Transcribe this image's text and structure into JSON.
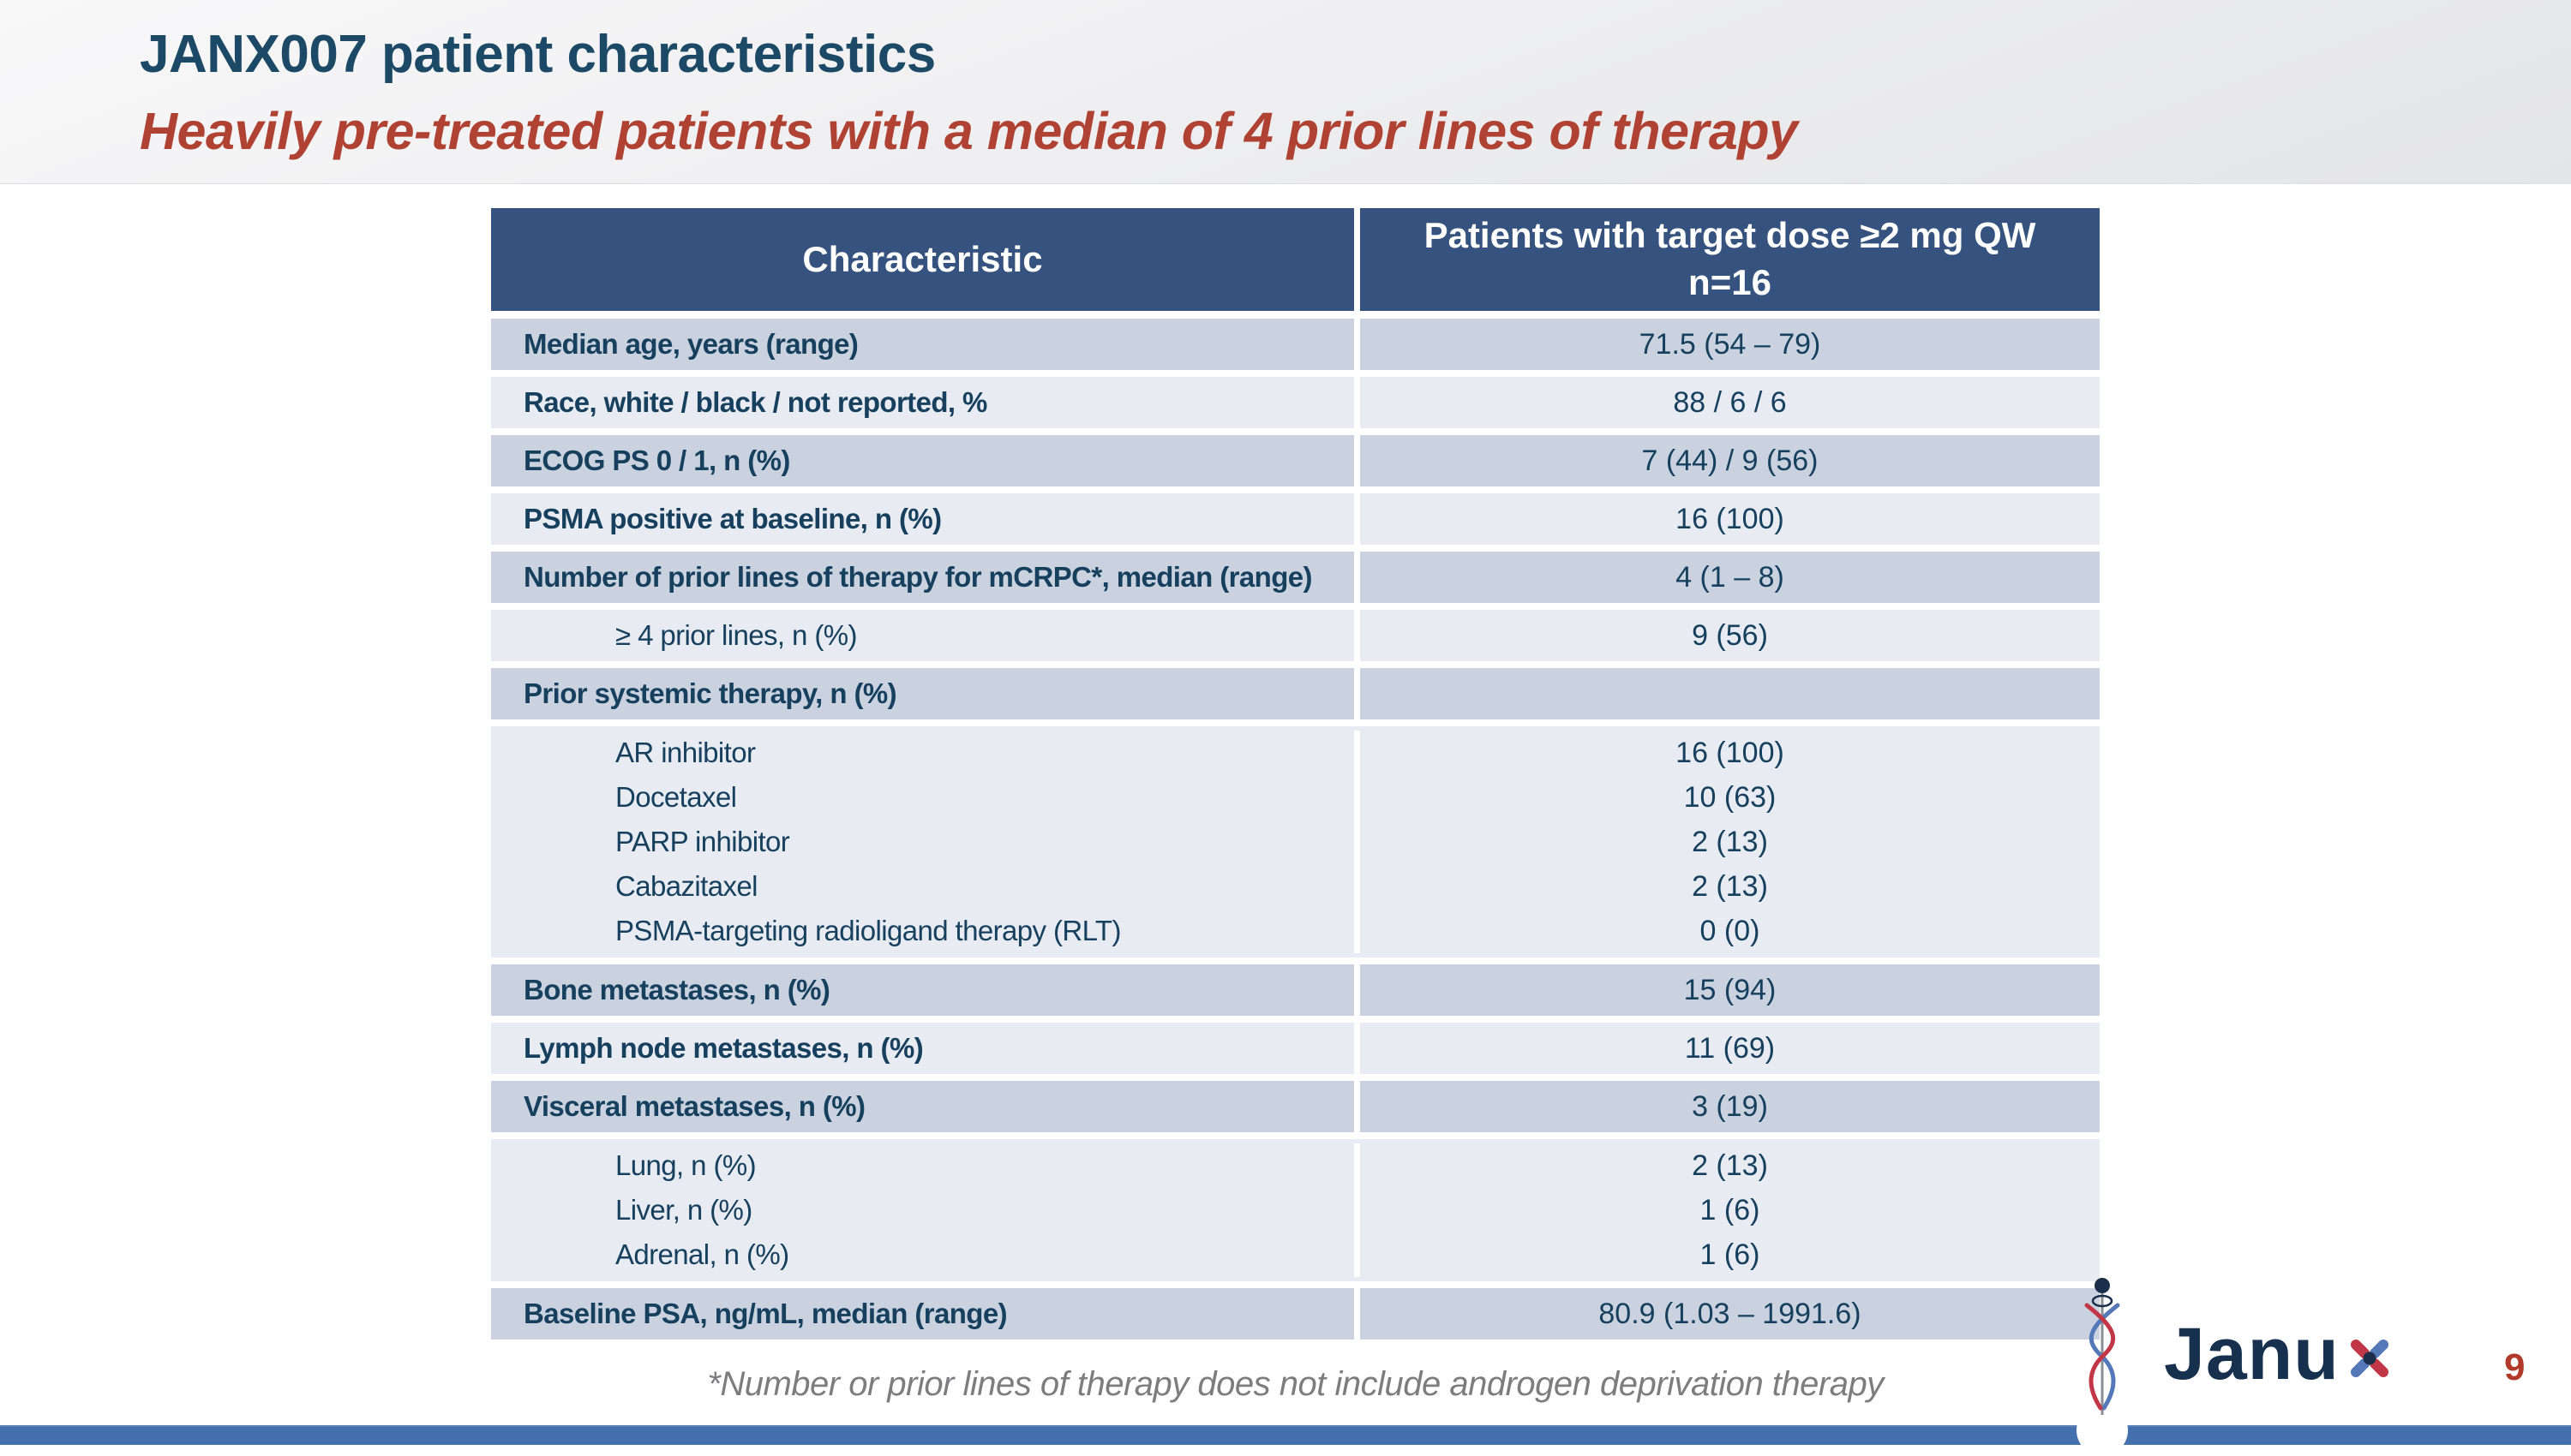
{
  "slide": {
    "title": "JANX007 patient characteristics",
    "subtitle": "Heavily pre-treated patients with a median of 4 prior lines of therapy",
    "footnote": "*Number or prior lines of therapy does not include androgen deprivation therapy",
    "page_number": "9"
  },
  "table": {
    "header": {
      "characteristic": "Characteristic",
      "cohort_line1": "Patients with target dose ≥2 mg QW",
      "cohort_line2": "n=16"
    },
    "rows": [
      {
        "style": "main",
        "label": "Median age, years (range)",
        "value": "71.5 (54 – 79)"
      },
      {
        "style": "main",
        "label": "Race, white / black / not reported, %",
        "value": "88 / 6 / 6"
      },
      {
        "style": "main",
        "label": "ECOG PS 0 / 1, n (%)",
        "value": "7 (44) / 9 (56)"
      },
      {
        "style": "main",
        "label": "PSMA positive at baseline, n (%)",
        "value": "16 (100)"
      },
      {
        "style": "main",
        "label": "Number of prior lines of therapy for mCRPC*, median (range)",
        "value": "4 (1 – 8)"
      },
      {
        "style": "sub",
        "label": "≥ 4 prior lines, n (%)",
        "value": "9 (56)"
      },
      {
        "style": "main",
        "label": "Prior systemic therapy, n (%)",
        "value": ""
      },
      {
        "style": "sub-group",
        "lines": [
          {
            "label": "AR inhibitor",
            "value": "16 (100)"
          },
          {
            "label": "Docetaxel",
            "value": "10 (63)"
          },
          {
            "label": "PARP inhibitor",
            "value": "2 (13)"
          },
          {
            "label": "Cabazitaxel",
            "value": "2 (13)"
          },
          {
            "label": "PSMA-targeting radioligand therapy (RLT)",
            "value": "0 (0)"
          }
        ]
      },
      {
        "style": "main",
        "label": "Bone metastases, n (%)",
        "value": "15 (94)"
      },
      {
        "style": "main",
        "label": "Lymph node metastases, n (%)",
        "value": "11 (69)"
      },
      {
        "style": "main",
        "label": "Visceral metastases, n (%)",
        "value": "3 (19)"
      },
      {
        "style": "sub-group",
        "lines": [
          {
            "label": "Lung, n (%)",
            "value": "2 (13)"
          },
          {
            "label": "Liver, n (%)",
            "value": "1 (6)"
          },
          {
            "label": "Adrenal, n (%)",
            "value": "1 (6)"
          }
        ]
      },
      {
        "style": "main",
        "label": "Baseline PSA, ng/mL, median (range)",
        "value": "80.9 (1.03 – 1991.6)"
      }
    ]
  },
  "logo": {
    "brand": "Janux",
    "wordmark_prefix": "Janu",
    "icon_name": "dna-helix-needle-icon"
  },
  "colors": {
    "title_navy": "#1c4a66",
    "subtitle_red": "#af4232",
    "table_header_blue": "#35537e",
    "row_dark": "#cad2df",
    "row_light": "#e9ebf2",
    "table_text_navy": "#16405e",
    "footnote_gray": "#7d7d7f",
    "bottom_bar_blue": "#4470ad",
    "page_number_red": "#b23a2b",
    "logo_navy": "#16304e",
    "logo_blue": "#5578b8",
    "logo_red": "#c23747"
  }
}
